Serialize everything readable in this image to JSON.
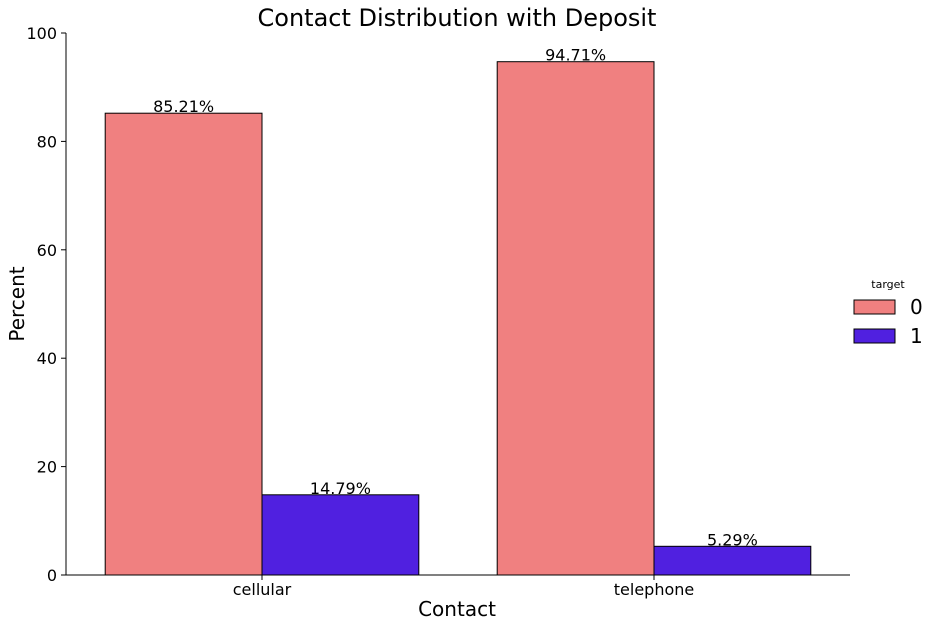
{
  "chart_data": {
    "type": "bar",
    "title": "Contact Distribution with Deposit",
    "xlabel": "Contact",
    "ylabel": "Percent",
    "categories": [
      "cellular",
      "telephone"
    ],
    "ylim": [
      0,
      100
    ],
    "yticks": [
      "0",
      "20",
      "40",
      "60",
      "80",
      "100"
    ],
    "grid": false,
    "legend": {
      "title": "target",
      "placement": "right"
    },
    "series": [
      {
        "name": "0",
        "color": "#F08080",
        "values": [
          85.21,
          94.71
        ],
        "labels": [
          "85.21%",
          "94.71%"
        ]
      },
      {
        "name": "1",
        "color": "#5020E0",
        "values": [
          14.79,
          5.29
        ],
        "labels": [
          "14.79%",
          "5.29%"
        ]
      }
    ]
  }
}
